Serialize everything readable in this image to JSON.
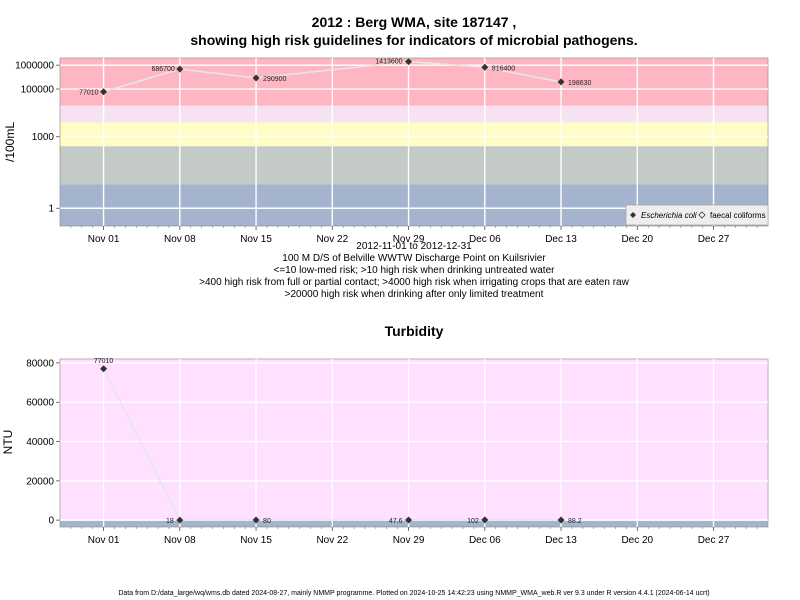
{
  "chart_data": [
    {
      "type": "line",
      "title_line1": "2012 : Berg WMA, site 187147 ,",
      "title_line2": "showing high risk guidelines for indicators of microbial pathogens.",
      "ylabel": "/100mL",
      "yscale": "log",
      "ylim": [
        0.18,
        2000000
      ],
      "xlim": [
        "2012-10-28",
        "2013-01-01"
      ],
      "y_ticks": [
        {
          "value": 1,
          "label": "1"
        },
        {
          "value": 1000,
          "label": "1000"
        },
        {
          "value": 100000,
          "label": "100000"
        },
        {
          "value": 1000000,
          "label": "1000000"
        }
      ],
      "x_ticks": [
        {
          "date": "2012-11-01",
          "label": "Nov 01"
        },
        {
          "date": "2012-11-08",
          "label": "Nov 08"
        },
        {
          "date": "2012-11-15",
          "label": "Nov 15"
        },
        {
          "date": "2012-11-22",
          "label": "Nov 22"
        },
        {
          "date": "2012-11-29",
          "label": "Nov 29"
        },
        {
          "date": "2012-12-06",
          "label": "Dec 06"
        },
        {
          "date": "2012-12-13",
          "label": "Dec 13"
        },
        {
          "date": "2012-12-20",
          "label": "Dec 20"
        },
        {
          "date": "2012-12-27",
          "label": "Dec 27"
        }
      ],
      "bands": [
        {
          "from": 0.18,
          "to": 10,
          "color": "#a4b4cf"
        },
        {
          "from": 10,
          "to": 400,
          "color": "#c4cac5"
        },
        {
          "from": 400,
          "to": 4000,
          "color": "#fffcc4"
        },
        {
          "from": 4000,
          "to": 20000,
          "color": "#f7e2f4"
        },
        {
          "from": 20000,
          "to": 2000000,
          "color": "#ffb6c3"
        }
      ],
      "series": [
        {
          "name": "Escherichia coli",
          "marker": "diamond",
          "color": "#333333",
          "points": [
            {
              "x": "2012-11-01",
              "y": 77010,
              "label": "77010"
            },
            {
              "x": "2012-11-08",
              "y": 686700,
              "label": "686700"
            },
            {
              "x": "2012-11-15",
              "y": 290900,
              "label": "290900"
            },
            {
              "x": "2012-11-29",
              "y": 1413600,
              "label": "1413600"
            },
            {
              "x": "2012-12-06",
              "y": 816400,
              "label": "816400"
            },
            {
              "x": "2012-12-13",
              "y": 198630,
              "label": "198630"
            }
          ]
        }
      ],
      "legend": {
        "position": "bottom-right",
        "items": [
          {
            "name": "Escherichia coli",
            "marker": "diamond-filled"
          },
          {
            "name": "faecal coliforms",
            "marker": "diamond-open"
          }
        ]
      },
      "caption": [
        "2012-11-01 to 2012-12-31",
        "100 M D/S of Belville WWTW Discharge Point on Kuilsrivier",
        "<=10 low-med risk; >10 high risk when drinking untreated water",
        ">400 high risk from full or partial contact; >4000 high risk when irrigating crops that are eaten raw",
        ">20000 high risk when drinking after only limited treatment"
      ]
    },
    {
      "type": "line",
      "title": "Turbidity",
      "ylabel": "NTU",
      "ylim": [
        -3500,
        82000
      ],
      "xlim": [
        "2012-10-28",
        "2013-01-01"
      ],
      "y_ticks": [
        {
          "value": 0,
          "label": "0"
        },
        {
          "value": 20000,
          "label": "20000"
        },
        {
          "value": 40000,
          "label": "40000"
        },
        {
          "value": 60000,
          "label": "60000"
        },
        {
          "value": 80000,
          "label": "80000"
        }
      ],
      "x_ticks": [
        {
          "date": "2012-11-01",
          "label": "Nov 01"
        },
        {
          "date": "2012-11-08",
          "label": "Nov 08"
        },
        {
          "date": "2012-11-15",
          "label": "Nov 15"
        },
        {
          "date": "2012-11-22",
          "label": "Nov 22"
        },
        {
          "date": "2012-11-29",
          "label": "Nov 29"
        },
        {
          "date": "2012-12-06",
          "label": "Dec 06"
        },
        {
          "date": "2012-12-13",
          "label": "Dec 13"
        },
        {
          "date": "2012-12-20",
          "label": "Dec 20"
        },
        {
          "date": "2012-12-27",
          "label": "Dec 27"
        }
      ],
      "bands": [
        {
          "from": -3500,
          "to": 0,
          "color": "#a4b4cf"
        },
        {
          "from": 0,
          "to": 82000,
          "color": "#ffe0ff"
        }
      ],
      "series": [
        {
          "marker": "diamond",
          "color": "#333333",
          "points": [
            {
              "x": "2012-11-01",
              "y": 77010,
              "label": "77010"
            },
            {
              "x": "2012-11-08",
              "y": 18,
              "label": "18"
            },
            {
              "x": "2012-11-15",
              "y": 80,
              "label": "80"
            },
            {
              "x": "2012-11-29",
              "y": 47.6,
              "label": "47.6"
            },
            {
              "x": "2012-12-06",
              "y": 102,
              "label": "102"
            },
            {
              "x": "2012-12-13",
              "y": 88.2,
              "label": "88.2"
            }
          ]
        }
      ]
    }
  ],
  "footer": "Data from D:/data_large/wq/wms.db dated 2024-08-27, mainly NMMP programme. Plotted on 2024-10-25 14:42:23 using NMMP_WMA_web.R ver 9.3 under R version 4.4.1 (2024-06-14 ucrt)"
}
